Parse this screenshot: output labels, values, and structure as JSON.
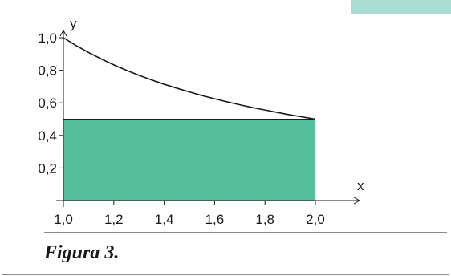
{
  "figure": {
    "caption": "Figura 3.",
    "accent_color": "#54BF9B",
    "corner_color": "#A9DDD4",
    "border_color": "#8c8c8c"
  },
  "chart_data": {
    "type": "area",
    "xlabel": "x",
    "ylabel": "y",
    "xlim": [
      1.0,
      2.1
    ],
    "ylim": [
      0.0,
      1.05
    ],
    "x_ticks": [
      1.0,
      1.2,
      1.4,
      1.6,
      1.8,
      2.0
    ],
    "x_tick_labels": [
      "1,0",
      "1,2",
      "1,4",
      "1,6",
      "1,8",
      "2,0"
    ],
    "y_ticks": [
      0.2,
      0.4,
      0.6,
      0.8,
      1.0
    ],
    "y_tick_labels": [
      "0,2",
      "0,4",
      "0,6",
      "0,8",
      "1,0"
    ],
    "curve": {
      "function": "y = 1/x",
      "x": [
        1.0,
        1.05,
        1.1,
        1.15,
        1.2,
        1.25,
        1.3,
        1.35,
        1.4,
        1.45,
        1.5,
        1.55,
        1.6,
        1.65,
        1.7,
        1.75,
        1.8,
        1.85,
        1.9,
        1.95,
        2.0
      ],
      "y": [
        1.0,
        0.952,
        0.909,
        0.87,
        0.833,
        0.8,
        0.769,
        0.741,
        0.714,
        0.69,
        0.667,
        0.645,
        0.625,
        0.606,
        0.588,
        0.571,
        0.556,
        0.541,
        0.526,
        0.513,
        0.5
      ]
    },
    "rectangle": {
      "x0": 1.0,
      "x1": 2.0,
      "height": 0.5
    },
    "grid": false,
    "legend": "none"
  }
}
